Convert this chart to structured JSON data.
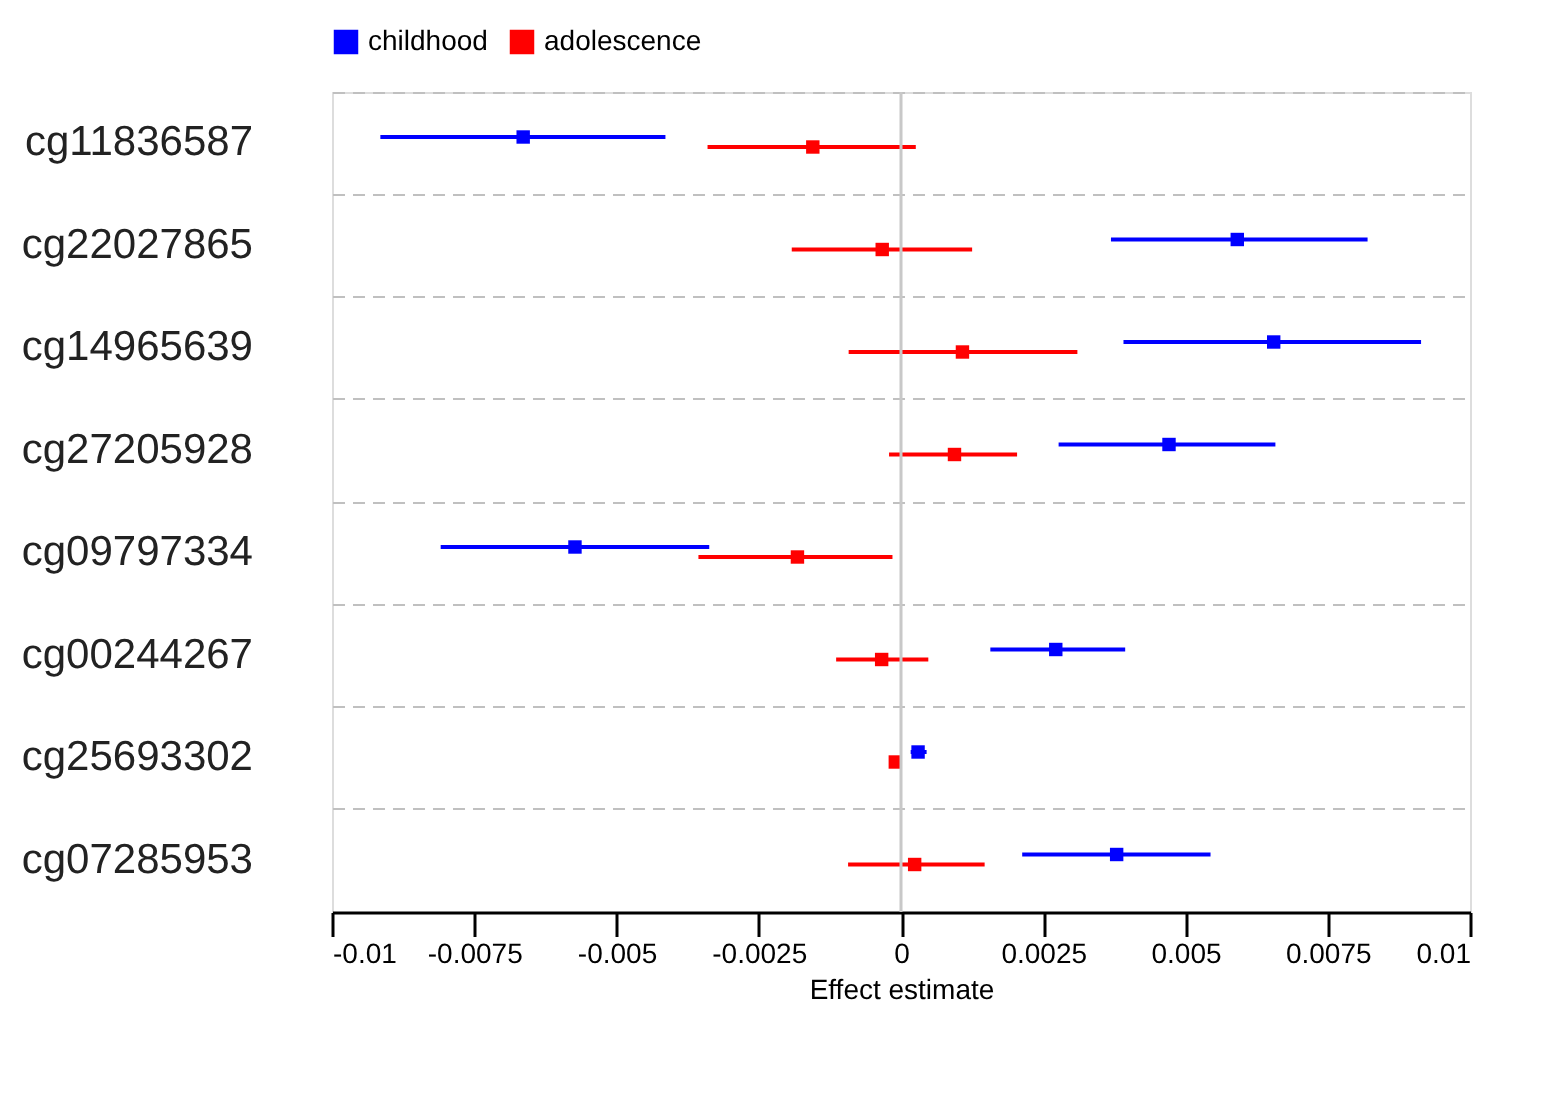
{
  "chart_data": {
    "type": "scatter",
    "orientation": "horizontal",
    "xlabel": "Effect estimate",
    "categories": [
      "cg11836587",
      "cg22027865",
      "cg14965639",
      "cg27205928",
      "cg09797334",
      "cg00244267",
      "cg25693302",
      "cg07285953"
    ],
    "series": [
      {
        "name": "childhood",
        "color": "#0000ff",
        "values": [
          -0.00664,
          0.00591,
          0.00655,
          0.00471,
          -0.00573,
          0.00272,
          0.0003,
          0.00379
        ],
        "errors": [
          [
            -0.00915,
            -0.00414
          ],
          [
            0.00369,
            0.0082
          ],
          [
            0.00391,
            0.00914
          ],
          [
            0.00277,
            0.00658
          ],
          [
            -0.00809,
            -0.00337
          ],
          [
            0.00157,
            0.00394
          ],
          [
            0.00017,
            0.00045
          ],
          [
            0.00213,
            0.00544
          ]
        ]
      },
      {
        "name": "adolescence",
        "color": "#ff0000",
        "values": [
          -0.00155,
          -0.00033,
          0.00108,
          0.00094,
          -0.00182,
          -0.00034,
          -0.0001,
          0.00024
        ],
        "errors": [
          [
            -0.0034,
            0.00026
          ],
          [
            -0.00192,
            0.00125
          ],
          [
            -0.00092,
            0.0031
          ],
          [
            -0.00021,
            0.00204
          ],
          [
            -0.00356,
            -0.00015
          ],
          [
            -0.00114,
            0.00048
          ],
          [
            -0.00013,
            -5e-05
          ],
          [
            -0.00093,
            0.00147
          ]
        ]
      }
    ],
    "xlim": [
      -0.01,
      0.01
    ],
    "xticks": [
      -0.01,
      -0.0075,
      -0.005,
      -0.0025,
      0,
      0.0025,
      0.005,
      0.0075,
      0.01
    ],
    "grid": "y",
    "legend": "top",
    "marker": "square",
    "ref_lines": [
      {
        "axis": "x",
        "value": 0,
        "color": "#c8c8c8"
      }
    ]
  }
}
